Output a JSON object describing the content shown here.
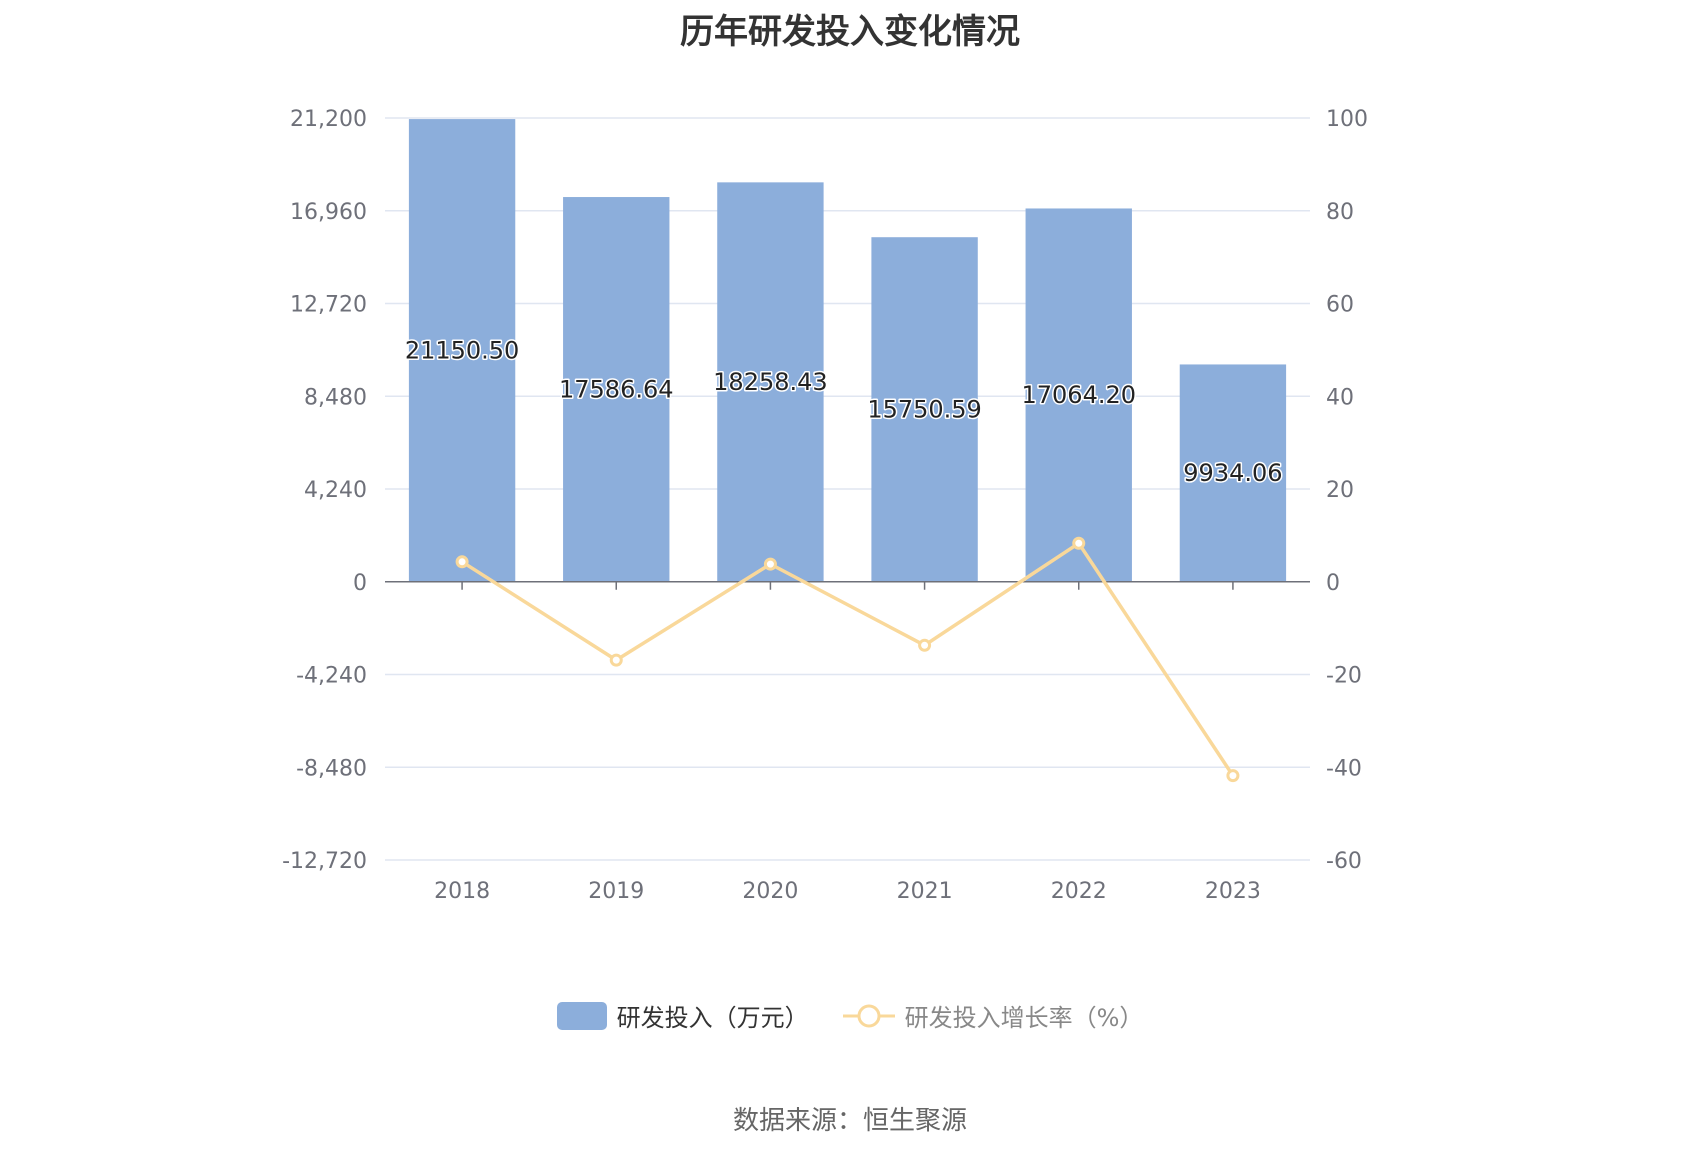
{
  "chart_data": {
    "type": "bar",
    "title": "历年研发投入变化情况",
    "categories": [
      "2018",
      "2019",
      "2020",
      "2021",
      "2022",
      "2023"
    ],
    "series": [
      {
        "name": "研发投入（万元）",
        "type": "bar",
        "axis": "left",
        "values": [
          21150.5,
          17586.64,
          18258.43,
          15750.59,
          17064.2,
          9934.06
        ],
        "labels": [
          "21150.50",
          "17586.64",
          "18258.43",
          "15750.59",
          "17064.20",
          "9934.06"
        ],
        "color": "#8caedb"
      },
      {
        "name": "研发投入增长率（%）",
        "type": "line",
        "axis": "right",
        "values": [
          4.3,
          -16.9,
          3.8,
          -13.7,
          8.3,
          -41.8
        ],
        "color": "#f9d89a"
      }
    ],
    "y_left": {
      "min": -12720,
      "max": 21200,
      "ticks": [
        21200,
        16960,
        12720,
        8480,
        4240,
        0,
        -4240,
        -8480,
        -12720
      ],
      "tick_labels": [
        "21,200",
        "16,960",
        "12,720",
        "8,480",
        "4,240",
        "0",
        "-4,240",
        "-8,480",
        "-12,720"
      ]
    },
    "y_right": {
      "min": -60,
      "max": 100,
      "ticks": [
        100,
        80,
        60,
        40,
        20,
        0,
        -20,
        -40,
        -60
      ],
      "tick_labels": [
        "100",
        "80",
        "60",
        "40",
        "20",
        "0",
        "-20",
        "-40",
        "-60"
      ]
    },
    "grid": true,
    "legend_position": "bottom"
  },
  "source": "数据来源：恒生聚源"
}
